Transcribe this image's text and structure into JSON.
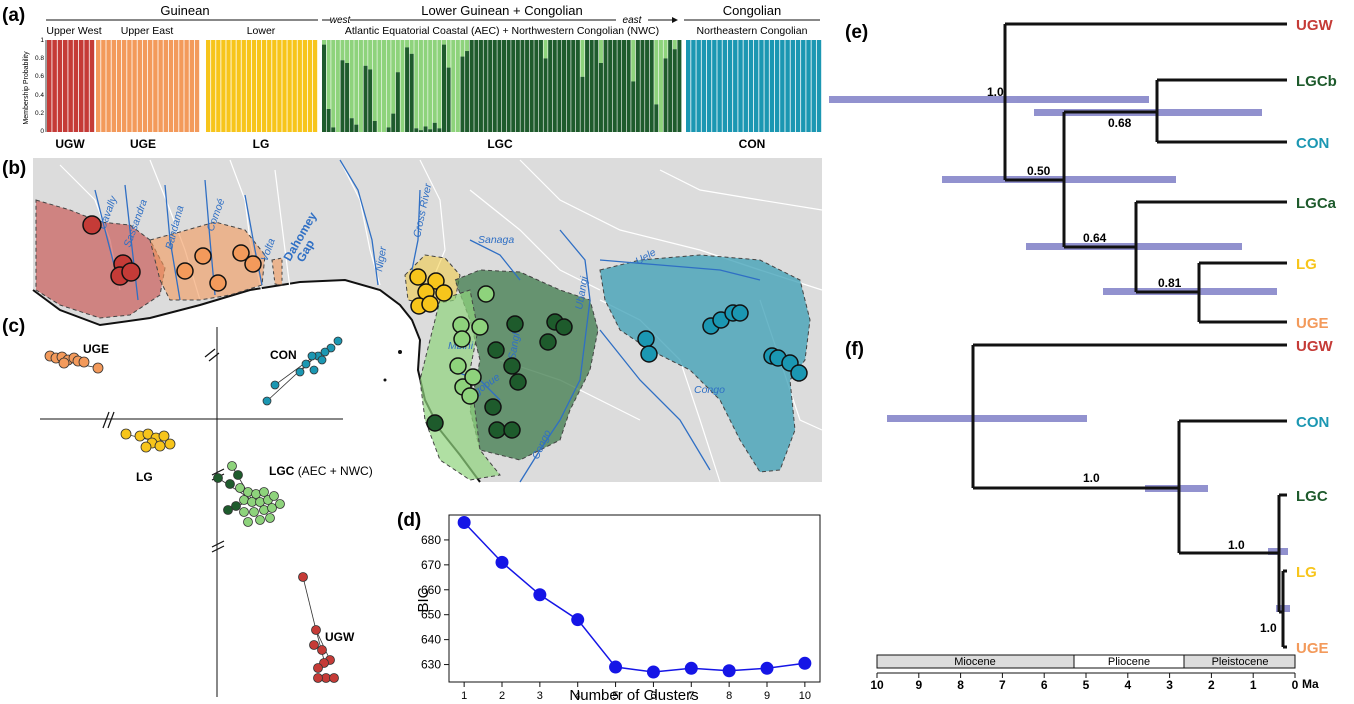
{
  "panels": {
    "a": "(a)",
    "b": "(b)",
    "c": "(c)",
    "d": "(d)",
    "e": "(e)",
    "f": "(f)"
  },
  "structure": {
    "top_groups": [
      "Guinean",
      "Lower Guinean + Congolian",
      "Congolian"
    ],
    "sub_groups": [
      "Upper West",
      "Upper East",
      "Lower",
      "Atlantic Equatorial Coastal (AEC) + Northwestern Congolian (NWC)",
      "Northeastern Congolian"
    ],
    "west": "west",
    "east": "east",
    "ylabel": "Membership Probability",
    "yticks": [
      "1",
      "0.8",
      "0.6",
      "0.4",
      "0.2",
      "0"
    ],
    "cluster_labels": [
      "UGW",
      "UGE",
      "LG",
      "LGC",
      "CON"
    ],
    "colors": {
      "UGW": "#c53b37",
      "UGE": "#f39a5b",
      "LG": "#f7c51b",
      "LGC_dark": "#1e5b2c",
      "LGC_light": "#8ed37c",
      "CON": "#1b97b2"
    },
    "lgc_dark_share": [
      0.95,
      0.25,
      0.05,
      0.0,
      0.78,
      0.75,
      0.15,
      0.08,
      0.0,
      0.72,
      0.68,
      0.12,
      0.0,
      0.0,
      0.05,
      0.2,
      0.65,
      0.0,
      0.92,
      0.85,
      0.04,
      0.02,
      0.06,
      0.03,
      0.1,
      0.04,
      0.95,
      0.7,
      0.0,
      0.0,
      0.82,
      0.88,
      1,
      1,
      1,
      1,
      1,
      1,
      1,
      1,
      1,
      1,
      1,
      1,
      1,
      1,
      1,
      1,
      0.8,
      1,
      1,
      1,
      1,
      1,
      1,
      1,
      0.6,
      1,
      1,
      1,
      0.75,
      1,
      1,
      1,
      1,
      1,
      1,
      0.55,
      1,
      1,
      1,
      1,
      0.3,
      0.0,
      0.8,
      1,
      0.9,
      1
    ]
  },
  "map": {
    "rivers": [
      "Cavally",
      "Sassandra",
      "Bandama",
      "Comoé",
      "Volta",
      "Niger",
      "Cross River",
      "Sanaga",
      "Mbini",
      "Ogooue",
      "Sangha",
      "Ubangi",
      "Congo",
      "Uele"
    ],
    "gap": [
      "Dahomey",
      "Gap"
    ]
  },
  "pca": {
    "labels": [
      "UGE",
      "CON",
      "LG",
      "LGC",
      "(AEC + NWC)",
      "UGW"
    ],
    "break_mark": "//"
  },
  "chart_data": {
    "type": "line",
    "x": [
      1,
      2,
      3,
      4,
      5,
      6,
      7,
      8,
      9,
      10
    ],
    "values": [
      687,
      671,
      658,
      648,
      629,
      627,
      628.5,
      627.5,
      628.5,
      630.5
    ],
    "xlabel": "Number of Clusters",
    "ylabel": "BIC",
    "ylim": [
      623,
      690
    ],
    "yticks": [
      630,
      640,
      650,
      660,
      670,
      680
    ],
    "xticks": [
      1,
      2,
      3,
      4,
      5,
      6,
      7,
      8,
      9,
      10
    ],
    "color": "#1515e6"
  },
  "tree_e": {
    "tips": [
      "UGW",
      "LGCb",
      "CON",
      "LGCa",
      "LG",
      "UGE"
    ],
    "supports": [
      "1.0",
      "0.68",
      "0.50",
      "0.64",
      "0.81"
    ]
  },
  "tree_f": {
    "tips": [
      "UGW",
      "CON",
      "LGC",
      "LG",
      "UGE"
    ],
    "supports": [
      "1.0",
      "1.0",
      "1.0"
    ]
  },
  "timescale": {
    "epochs": [
      "Miocene",
      "Pliocene",
      "Pleistocene"
    ],
    "ticks": [
      "10",
      "9",
      "8",
      "7",
      "6",
      "5",
      "4",
      "3",
      "2",
      "1",
      "0"
    ],
    "unit": "Ma"
  }
}
